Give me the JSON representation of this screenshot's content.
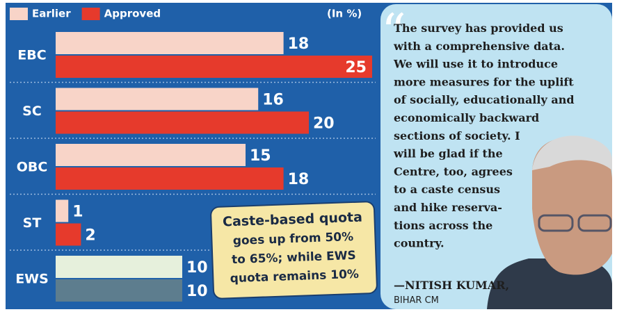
{
  "chart_data": {
    "type": "bar",
    "orientation": "horizontal",
    "units_label": "(In %)",
    "categories": [
      "EBC",
      "SC",
      "OBC",
      "ST",
      "EWS"
    ],
    "series": [
      {
        "name": "Earlier",
        "color": "#f8d4c8",
        "colors": [
          "#f8d4c8",
          "#f8d4c8",
          "#f8d4c8",
          "#f8d4c8",
          "#e6f0dc"
        ],
        "values": [
          18,
          16,
          15,
          1,
          10
        ]
      },
      {
        "name": "Approved",
        "color": "#e63a2c",
        "colors": [
          "#e63a2c",
          "#e63a2c",
          "#e63a2c",
          "#e63a2c",
          "#5d7d8e"
        ],
        "values": [
          25,
          20,
          18,
          2,
          10
        ]
      }
    ],
    "xlim": [
      0,
      25
    ],
    "annotation": [
      "Caste-based quota",
      "goes up from 50%",
      "to 65%; while EWS",
      "quota remains 10%"
    ]
  },
  "quote": {
    "lines": [
      "The survey has provided us",
      "with a comprehensive data.",
      "We will use it to introduce",
      "more measures for the uplift",
      "of socially, educationally and",
      "economically backward",
      "sections of society. I",
      "will be glad if the",
      "Centre, too, agrees",
      "to a caste census",
      "and hike reserva-",
      "tions across the",
      "country."
    ],
    "author": "—NITISH KUMAR,",
    "role": "BIHAR CM"
  }
}
